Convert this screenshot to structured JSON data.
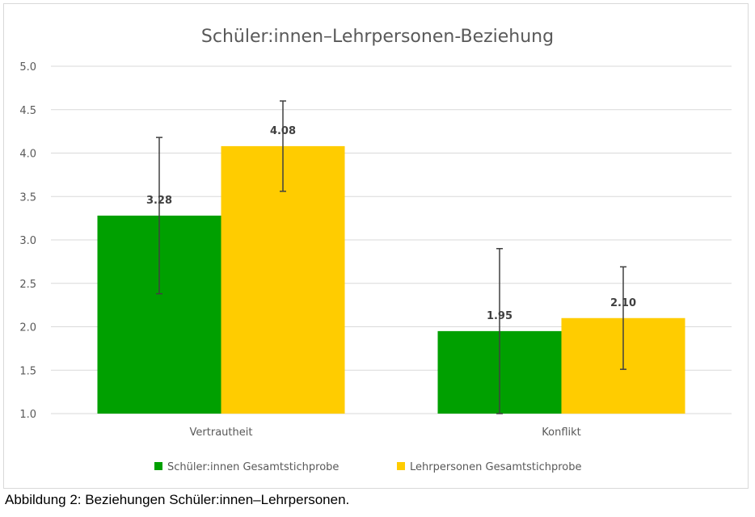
{
  "chart_data": {
    "type": "bar",
    "title": "Schüler:innen–Lehrpersonen-Beziehung",
    "categories": [
      "Vertrautheit",
      "Konflikt"
    ],
    "series": [
      {
        "name": "Schüler:innen Gesamtstichprobe",
        "color": "#00a000",
        "values": [
          3.28,
          1.95
        ],
        "labels": [
          "3.28",
          "1.95"
        ],
        "error_low": [
          2.38,
          1.0
        ],
        "error_high": [
          4.18,
          2.9
        ]
      },
      {
        "name": "Lehrpersonen Gesamtstichprobe",
        "color": "#ffcc00",
        "values": [
          4.08,
          2.1
        ],
        "labels": [
          "4.08",
          "2.10"
        ],
        "error_low": [
          3.56,
          1.51
        ],
        "error_high": [
          4.6,
          2.69
        ]
      }
    ],
    "ylim": [
      1.0,
      5.0
    ],
    "yticks": [
      "1.0",
      "1.5",
      "2.0",
      "2.5",
      "3.0",
      "3.5",
      "4.0",
      "4.5",
      "5.0"
    ],
    "grid": true,
    "legend": "bottom",
    "xlabel": "",
    "ylabel": ""
  },
  "caption": "Abbildung 2: Beziehungen Schüler:innen–Lehrpersonen."
}
